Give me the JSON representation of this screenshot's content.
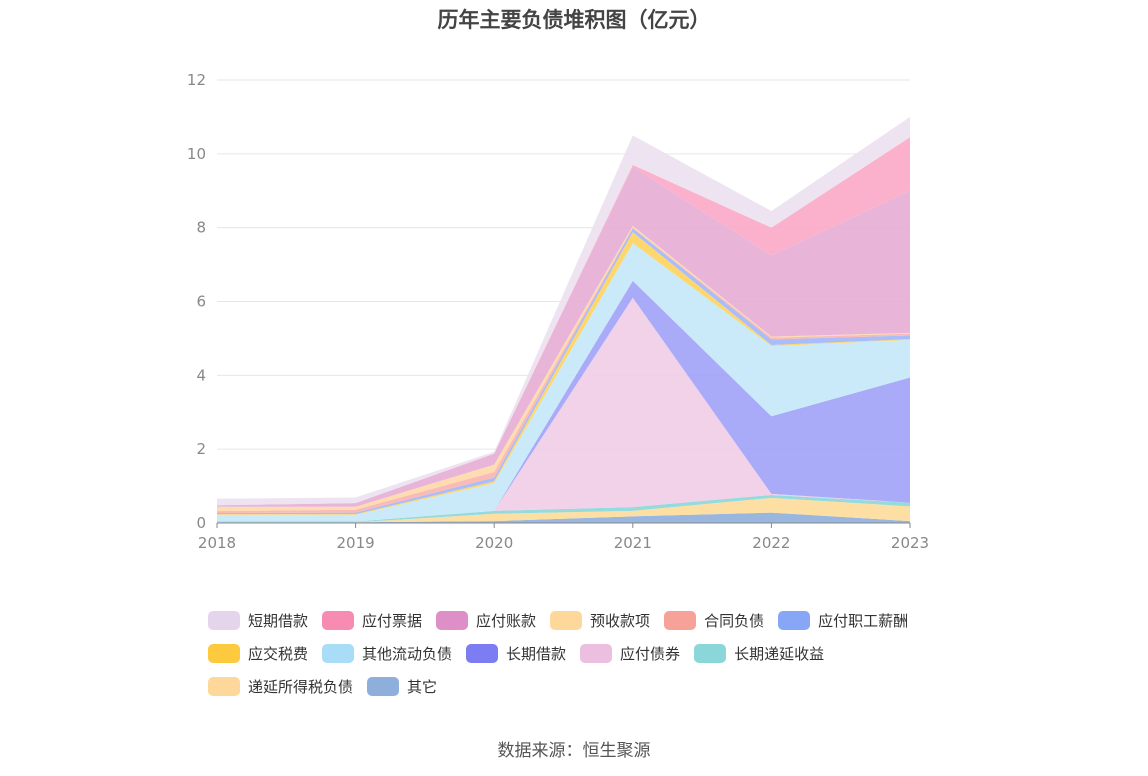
{
  "source": "数据来源：恒生聚源",
  "chart_data": {
    "type": "area",
    "title": "历年主要负债堆积图（亿元）",
    "x": [
      "2018",
      "2019",
      "2020",
      "2021",
      "2022",
      "2023"
    ],
    "ylim": [
      0,
      12
    ],
    "yticks": [
      "0",
      "2",
      "4",
      "6",
      "8",
      "10",
      "12"
    ],
    "grid": true,
    "legend_position": "bottom",
    "series": [
      {
        "name": "其它",
        "color": "#8eaedc",
        "values": [
          0.02,
          0.02,
          0.05,
          0.18,
          0.28,
          0.05
        ]
      },
      {
        "name": "递延所得税负债",
        "color": "#fddc9a",
        "values": [
          0.0,
          0.0,
          0.2,
          0.15,
          0.4,
          0.4
        ]
      },
      {
        "name": "长期递延收益",
        "color": "#8ad6d8",
        "values": [
          0.02,
          0.02,
          0.08,
          0.1,
          0.08,
          0.1
        ]
      },
      {
        "name": "应付债券",
        "color": "#efcde6",
        "values": [
          0.0,
          0.0,
          0.0,
          5.67,
          0.03,
          0.0
        ]
      },
      {
        "name": "长期借款",
        "color": "#a0a2f8",
        "values": [
          0.0,
          0.0,
          0.0,
          0.46,
          2.1,
          3.39
        ]
      },
      {
        "name": "其他流动负债",
        "color": "#c5e8f8",
        "values": [
          0.18,
          0.18,
          0.75,
          1.02,
          1.9,
          1.02
        ]
      },
      {
        "name": "应交税费",
        "color": "#fdd35e",
        "values": [
          0.02,
          0.02,
          0.05,
          0.3,
          0.03,
          0.02
        ]
      },
      {
        "name": "应付职工薪酬",
        "color": "#9fb6f8",
        "values": [
          0.03,
          0.04,
          0.1,
          0.1,
          0.15,
          0.1
        ]
      },
      {
        "name": "合同负债",
        "color": "#f9b2ae",
        "values": [
          0.05,
          0.08,
          0.15,
          0.02,
          0.05,
          0.05
        ]
      },
      {
        "name": "预收款项",
        "color": "#fdd8a8",
        "values": [
          0.12,
          0.08,
          0.2,
          0.05,
          0.03,
          0.02
        ]
      },
      {
        "name": "应付账款",
        "color": "#e5acd4",
        "values": [
          0.04,
          0.1,
          0.3,
          1.6,
          2.2,
          3.85
        ]
      },
      {
        "name": "应付票据",
        "color": "#fba8c7",
        "values": [
          0.0,
          0.0,
          0.0,
          0.05,
          0.75,
          1.45
        ]
      },
      {
        "name": "短期借款",
        "color": "#ece0ef",
        "values": [
          0.18,
          0.15,
          0.05,
          0.8,
          0.45,
          0.55
        ]
      }
    ]
  },
  "legend": [
    {
      "label": "短期借款",
      "color": "#e5d5ec"
    },
    {
      "label": "应付票据",
      "color": "#f88bb2"
    },
    {
      "label": "应付账款",
      "color": "#df8fc8"
    },
    {
      "label": "预收款项",
      "color": "#fdd89a"
    },
    {
      "label": "合同负债",
      "color": "#f7a298"
    },
    {
      "label": "应付职工薪酬",
      "color": "#88a6f6"
    },
    {
      "label": "应交税费",
      "color": "#fdc93e"
    },
    {
      "label": "其他流动负债",
      "color": "#a9ddf7"
    },
    {
      "label": "长期借款",
      "color": "#7c7df2"
    },
    {
      "label": "应付债券",
      "color": "#ecbee0"
    },
    {
      "label": "长期递延收益",
      "color": "#8ad6d8"
    },
    {
      "label": "递延所得税负债",
      "color": "#fdd89a"
    },
    {
      "label": "其它",
      "color": "#8eaedc"
    }
  ]
}
